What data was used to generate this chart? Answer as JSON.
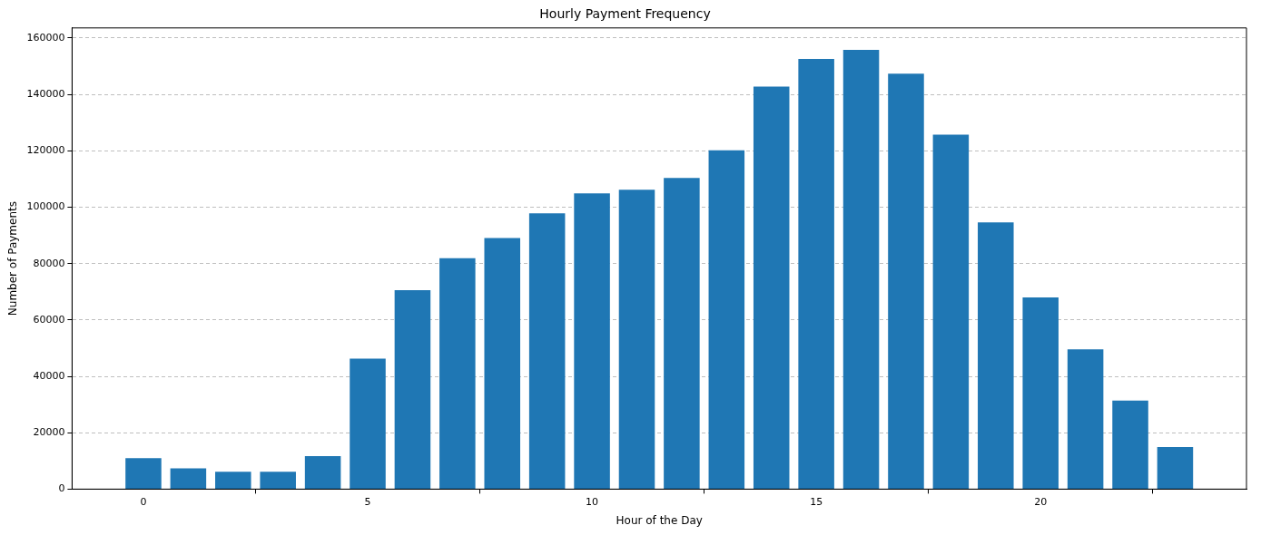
{
  "chart_data": {
    "type": "bar",
    "title": "Hourly Payment Frequency",
    "xlabel": "Hour of the Day",
    "ylabel": "Number of Payments",
    "x": [
      0,
      1,
      2,
      3,
      4,
      5,
      6,
      7,
      8,
      9,
      10,
      11,
      12,
      13,
      14,
      15,
      16,
      17,
      18,
      19,
      20,
      21,
      22,
      23
    ],
    "values": [
      11000,
      7400,
      6200,
      6200,
      11700,
      46300,
      70600,
      81900,
      89100,
      97800,
      104900,
      106200,
      110400,
      120200,
      142800,
      152600,
      155800,
      147400,
      125700,
      94600,
      68000,
      49600,
      31400,
      14900
    ],
    "color": "#1f77b4",
    "xlim": [
      -1.59,
      24.59
    ],
    "xticks": [
      0,
      5,
      10,
      15,
      20
    ],
    "ylim": [
      0,
      163600
    ],
    "yticks": [
      0,
      20000,
      40000,
      60000,
      80000,
      100000,
      120000,
      140000,
      160000
    ],
    "grid": "y"
  }
}
